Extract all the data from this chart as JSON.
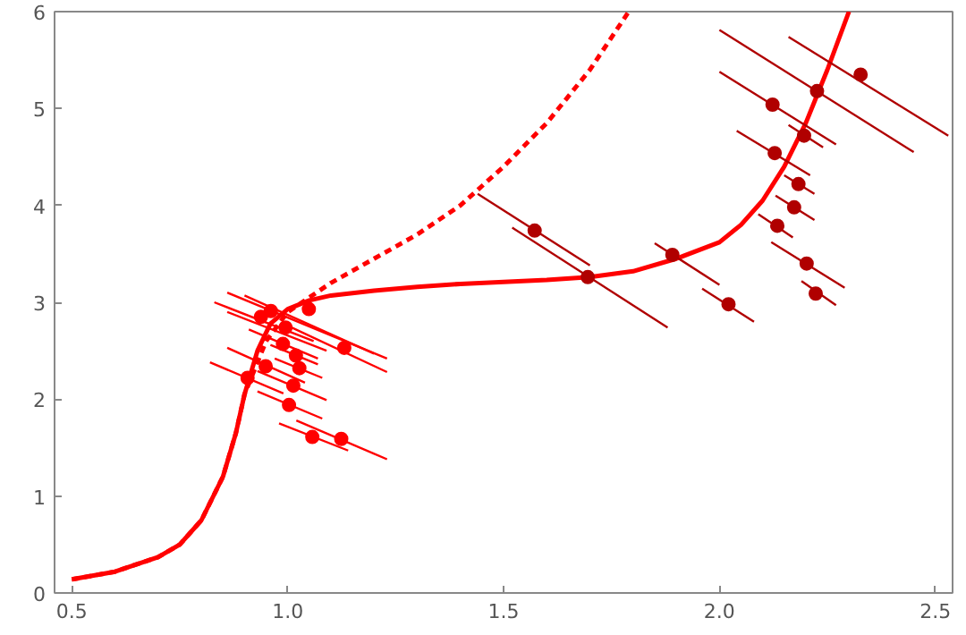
{
  "chart_data": {
    "type": "line",
    "xlim": [
      0.46,
      2.54
    ],
    "ylim": [
      0,
      6
    ],
    "xticks": [
      0.5,
      {
        "value": 1.0,
        "label": "1.0"
      },
      1.5,
      {
        "value": 2.0,
        "label": "2.0"
      },
      2.5
    ],
    "yticks": [
      0,
      1,
      2,
      3,
      4,
      5,
      6
    ],
    "grid": false,
    "series": [
      {
        "color": "#ff0000",
        "line_style": "solid",
        "x": [
          0.5,
          0.6,
          0.7,
          0.75,
          0.8,
          0.85,
          0.88,
          0.9,
          0.93,
          0.96,
          1.0,
          1.05,
          1.1,
          1.2,
          1.3,
          1.4,
          1.5,
          1.6,
          1.7,
          1.8,
          1.9,
          2.0,
          2.05,
          2.1,
          2.15,
          2.2,
          2.25,
          2.3
        ],
        "values": [
          0.14,
          0.22,
          0.37,
          0.5,
          0.75,
          1.2,
          1.65,
          2.05,
          2.5,
          2.78,
          2.93,
          3.02,
          3.07,
          3.12,
          3.16,
          3.19,
          3.21,
          3.23,
          3.26,
          3.32,
          3.45,
          3.62,
          3.8,
          4.05,
          4.4,
          4.85,
          5.4,
          6.0
        ]
      },
      {
        "color": "#ff0000",
        "line_style": "dashed",
        "x": [
          0.5,
          0.6,
          0.7,
          0.75,
          0.8,
          0.85,
          0.88,
          0.9,
          0.95,
          1.0,
          1.1,
          1.2,
          1.3,
          1.4,
          1.5,
          1.6,
          1.7,
          1.79
        ],
        "values": [
          0.14,
          0.22,
          0.37,
          0.5,
          0.75,
          1.2,
          1.65,
          2.05,
          2.6,
          2.9,
          3.2,
          3.45,
          3.7,
          4.0,
          4.4,
          4.85,
          5.4,
          6.0
        ]
      },
      {
        "color": "#ff0000",
        "x": [
          0.86,
          1.23
        ],
        "values": [
          3.1,
          2.42
        ]
      },
      {
        "color": "#ff0000",
        "x": [
          0.83,
          1.06
        ],
        "values": [
          3.0,
          2.6
        ]
      },
      {
        "color": "#ff0000",
        "x": [
          0.9,
          1.2
        ],
        "values": [
          3.07,
          2.47
        ]
      },
      {
        "color": "#ff0000",
        "x": [
          0.86,
          1.09
        ],
        "values": [
          2.9,
          2.5
        ]
      },
      {
        "color": "#ff0000",
        "x": [
          0.91,
          1.07
        ],
        "values": [
          2.72,
          2.42
        ]
      },
      {
        "color": "#ff0000",
        "x": [
          0.99,
          1.23
        ],
        "values": [
          2.78,
          2.28
        ]
      },
      {
        "color": "#ff0000",
        "x": [
          0.96,
          1.07
        ],
        "values": [
          2.56,
          2.36
        ]
      },
      {
        "color": "#ff0000",
        "x": [
          0.97,
          1.08
        ],
        "values": [
          2.42,
          2.22
        ]
      },
      {
        "color": "#ff0000",
        "x": [
          0.86,
          1.04
        ],
        "values": [
          2.53,
          2.17
        ]
      },
      {
        "color": "#ff0000",
        "x": [
          0.82,
          0.99
        ],
        "values": [
          2.38,
          2.06
        ]
      },
      {
        "color": "#ff0000",
        "x": [
          0.93,
          1.09
        ],
        "values": [
          2.29,
          1.99
        ]
      },
      {
        "color": "#ff0000",
        "x": [
          0.93,
          1.08
        ],
        "values": [
          2.08,
          1.8
        ]
      },
      {
        "color": "#ff0000",
        "x": [
          0.98,
          1.14
        ],
        "values": [
          1.75,
          1.47
        ]
      },
      {
        "color": "#ff0000",
        "x": [
          1.02,
          1.23
        ],
        "values": [
          1.78,
          1.38
        ]
      },
      {
        "color": "#b00000",
        "x": [
          1.44,
          1.7
        ],
        "values": [
          4.12,
          3.38
        ]
      },
      {
        "color": "#b00000",
        "x": [
          1.52,
          1.88
        ],
        "values": [
          3.77,
          2.74
        ]
      },
      {
        "color": "#b00000",
        "x": [
          1.85,
          2.0
        ],
        "values": [
          3.61,
          3.18
        ]
      },
      {
        "color": "#b00000",
        "x": [
          1.96,
          2.08
        ],
        "values": [
          3.14,
          2.8
        ]
      },
      {
        "color": "#b00000",
        "x": [
          2.16,
          2.53
        ],
        "values": [
          5.74,
          4.72
        ]
      },
      {
        "color": "#b00000",
        "x": [
          2.0,
          2.45
        ],
        "values": [
          5.81,
          4.55
        ]
      },
      {
        "color": "#b00000",
        "x": [
          2.0,
          2.27
        ],
        "values": [
          5.38,
          4.63
        ]
      },
      {
        "color": "#b00000",
        "x": [
          2.16,
          2.24
        ],
        "values": [
          4.83,
          4.6
        ]
      },
      {
        "color": "#b00000",
        "x": [
          2.04,
          2.21
        ],
        "values": [
          4.77,
          4.31
        ]
      },
      {
        "color": "#b00000",
        "x": [
          2.15,
          2.22
        ],
        "values": [
          4.31,
          4.12
        ]
      },
      {
        "color": "#b00000",
        "x": [
          2.13,
          2.22
        ],
        "values": [
          4.1,
          3.85
        ]
      },
      {
        "color": "#b00000",
        "x": [
          2.09,
          2.17
        ],
        "values": [
          3.91,
          3.67
        ]
      },
      {
        "color": "#b00000",
        "x": [
          2.12,
          2.29
        ],
        "values": [
          3.62,
          3.15
        ]
      },
      {
        "color": "#b00000",
        "x": [
          2.19,
          2.27
        ],
        "values": [
          3.22,
          2.97
        ]
      },
      {
        "type": "scatter",
        "color": "#ff0000",
        "x": [
          0.961,
          0.938,
          1.049,
          0.995,
          0.989,
          1.131,
          1.019,
          1.027,
          0.949,
          0.907,
          1.013,
          1.003,
          1.057,
          1.124
        ],
        "values": [
          2.91,
          2.85,
          2.93,
          2.74,
          2.57,
          2.53,
          2.45,
          2.32,
          2.34,
          2.22,
          2.14,
          1.94,
          1.61,
          1.59
        ]
      },
      {
        "type": "scatter",
        "color": "#b00000",
        "x": [
          1.572,
          1.695,
          1.891,
          2.021,
          2.327,
          2.226,
          2.123,
          2.196,
          2.128,
          2.183,
          2.173,
          2.134,
          2.202,
          2.223
        ],
        "values": [
          3.74,
          3.26,
          3.49,
          2.98,
          5.35,
          5.18,
          5.04,
          4.72,
          4.54,
          4.22,
          3.98,
          3.79,
          3.4,
          3.09
        ]
      }
    ]
  }
}
